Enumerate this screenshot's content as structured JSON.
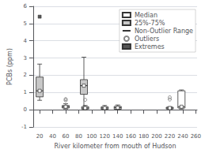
{
  "chart_data": {
    "type": "box",
    "xlabel": "River kilometer from mouth of Hudson",
    "ylabel": "PCBs (ppm)",
    "xlim": [
      10,
      262
    ],
    "ylim": [
      -1,
      6
    ],
    "xticks": [
      20,
      40,
      60,
      80,
      100,
      120,
      140,
      160,
      180,
      200,
      220,
      240,
      260
    ],
    "yticks": [
      -1,
      0,
      1,
      2,
      3,
      4,
      5,
      6
    ],
    "grid": true,
    "legend": "upper right",
    "series": [
      {
        "name": "Median",
        "marker": "square",
        "color": "#ffffff"
      },
      {
        "name": "25%-75%",
        "color": "#c8c8c8"
      },
      {
        "name": "Non-Outlier Range",
        "color": "#333333"
      },
      {
        "name": "Outliers",
        "marker": "circle",
        "color": "#888888"
      },
      {
        "name": "Extremes",
        "marker": "square",
        "color": "#555555"
      }
    ],
    "boxes": [
      {
        "x": 20,
        "q1": 0.75,
        "median": 1.1,
        "q3": 1.9,
        "whislo": 0.55,
        "whishi": 2.65,
        "outliers": [],
        "extremes": [
          5.4
        ],
        "color": "#c8c8c8"
      },
      {
        "x": 60,
        "q1": 0.1,
        "median": 0.18,
        "q3": 0.25,
        "whislo": 0.05,
        "whishi": 0.35,
        "outliers": [
          0.55,
          0.62
        ],
        "extremes": [],
        "color": "#c8c8c8"
      },
      {
        "x": 90,
        "q1": 0.05,
        "median": 0.1,
        "q3": 0.18,
        "whislo": 0.0,
        "whishi": 0.25,
        "outliers": [
          0.58
        ],
        "extremes": [],
        "color": "#c8c8c8"
      },
      {
        "x": 120,
        "q1": 0.03,
        "median": 0.1,
        "q3": 0.17,
        "whislo": 0.0,
        "whishi": 0.25,
        "outliers": [],
        "extremes": [],
        "color": "#c8c8c8"
      },
      {
        "x": 140,
        "q1": 0.03,
        "median": 0.12,
        "q3": 0.2,
        "whislo": 0.0,
        "whishi": 0.28,
        "outliers": [],
        "extremes": [],
        "color": "#c8c8c8"
      },
      {
        "x": 88,
        "q1": 0.9,
        "median": 1.4,
        "q3": 1.75,
        "whislo": 0.0,
        "whishi": 3.05,
        "outliers": [],
        "extremes": [],
        "color": "#c8c8c8"
      },
      {
        "x": 220,
        "q1": 0.05,
        "median": 0.1,
        "q3": 0.15,
        "whislo": 0.02,
        "whishi": 0.18,
        "outliers": [
          0.6,
          0.72
        ],
        "extremes": [],
        "color": "#c8c8c8"
      },
      {
        "x": 238,
        "q1": 0.1,
        "median": 0.18,
        "q3": 1.1,
        "whislo": 0.05,
        "whishi": 1.15,
        "outliers": [],
        "extremes": [],
        "color": "#ffffff"
      }
    ]
  }
}
